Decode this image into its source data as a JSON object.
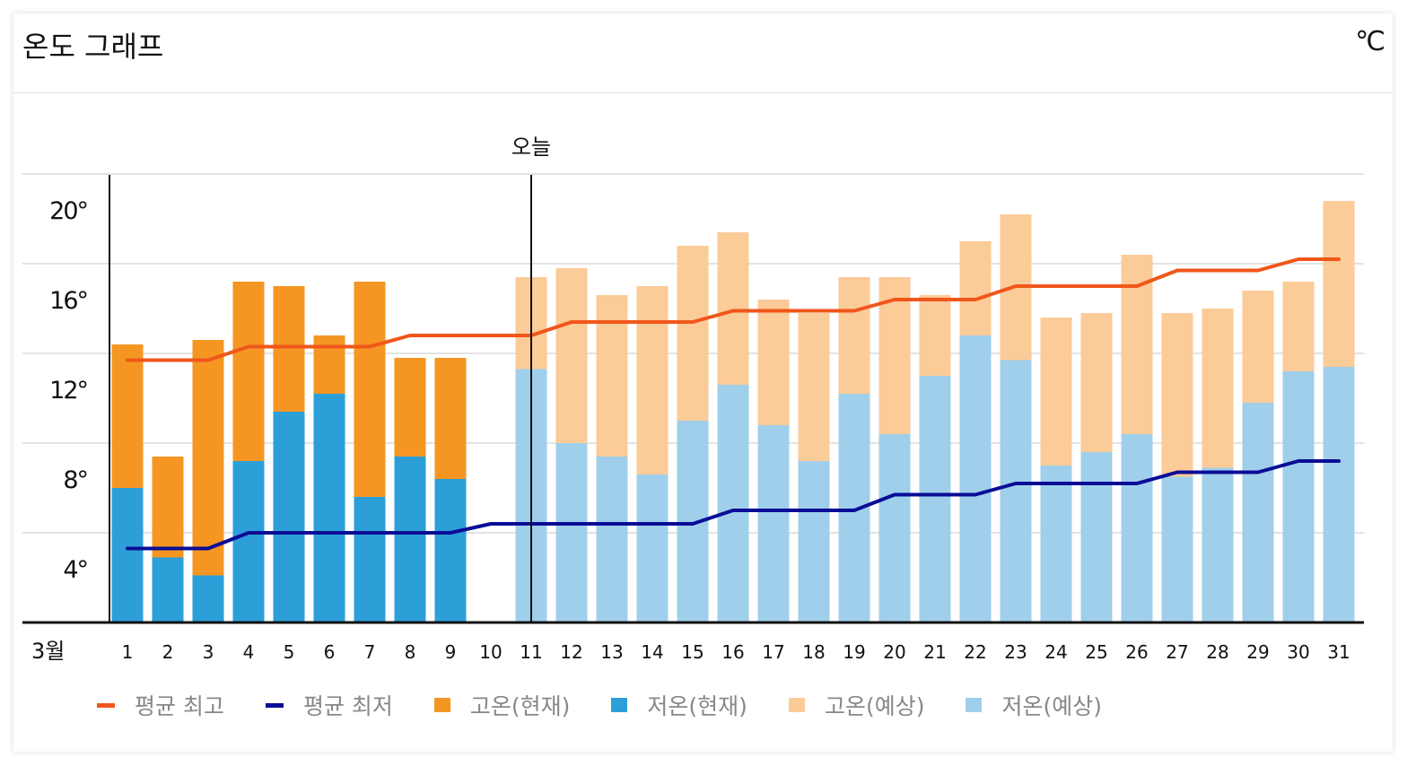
{
  "header": {
    "title": "온도 그래프",
    "unit": "℃"
  },
  "chart_data": {
    "type": "bar",
    "month_label": "3월",
    "today_label": "오늘",
    "today": 11,
    "categories": [
      1,
      2,
      3,
      4,
      5,
      6,
      7,
      8,
      9,
      10,
      11,
      12,
      13,
      14,
      15,
      16,
      17,
      18,
      19,
      20,
      21,
      22,
      23,
      24,
      25,
      26,
      27,
      28,
      29,
      30,
      31
    ],
    "ylim": [
      0,
      20
    ],
    "yticks": [
      4,
      8,
      12,
      16,
      20
    ],
    "ytick_labels": [
      "4°",
      "8°",
      "12°",
      "16°",
      "20°"
    ],
    "grid": true,
    "legend_position": "bottom",
    "series": [
      {
        "name": "고온(현재)",
        "type": "bar",
        "color": "#f59623",
        "values": [
          12.4,
          7.4,
          12.6,
          15.2,
          15.0,
          12.8,
          15.2,
          11.8,
          11.8,
          null,
          null,
          null,
          null,
          null,
          null,
          null,
          null,
          null,
          null,
          null,
          null,
          null,
          null,
          null,
          null,
          null,
          null,
          null,
          null,
          null,
          null
        ]
      },
      {
        "name": "저온(현재)",
        "type": "bar",
        "color": "#2d9fd8",
        "values": [
          6.0,
          2.9,
          2.1,
          7.2,
          9.4,
          10.2,
          5.6,
          7.4,
          6.4,
          null,
          null,
          null,
          null,
          null,
          null,
          null,
          null,
          null,
          null,
          null,
          null,
          null,
          null,
          null,
          null,
          null,
          null,
          null,
          null,
          null,
          null
        ]
      },
      {
        "name": "고온(예상)",
        "type": "bar",
        "color": "#fbcb98",
        "values": [
          null,
          null,
          null,
          null,
          null,
          null,
          null,
          null,
          null,
          null,
          15.4,
          15.8,
          14.6,
          15.0,
          16.8,
          17.4,
          14.4,
          13.8,
          15.4,
          15.4,
          14.6,
          17.0,
          18.2,
          13.6,
          13.8,
          16.4,
          13.8,
          14.0,
          14.8,
          15.2,
          18.8
        ]
      },
      {
        "name": "저온(예상)",
        "type": "bar",
        "color": "#9fcfeb",
        "values": [
          null,
          null,
          null,
          null,
          null,
          null,
          null,
          null,
          null,
          null,
          11.3,
          8.0,
          7.4,
          6.6,
          9.0,
          10.6,
          8.8,
          7.2,
          10.2,
          8.4,
          11.0,
          12.8,
          11.7,
          7.0,
          7.6,
          8.4,
          6.5,
          6.9,
          9.8,
          11.2,
          11.4
        ]
      },
      {
        "name": "평균 최고",
        "type": "line",
        "color": "#f0561a",
        "values": [
          11.7,
          11.7,
          11.7,
          12.3,
          12.3,
          12.3,
          12.3,
          12.8,
          12.8,
          12.8,
          12.8,
          13.4,
          13.4,
          13.4,
          13.4,
          13.9,
          13.9,
          13.9,
          13.9,
          14.4,
          14.4,
          14.4,
          15.0,
          15.0,
          15.0,
          15.0,
          15.7,
          15.7,
          15.7,
          16.2,
          16.2
        ]
      },
      {
        "name": "평균 최저",
        "type": "line",
        "color": "#0a0d96",
        "values": [
          3.3,
          3.3,
          3.3,
          4.0,
          4.0,
          4.0,
          4.0,
          4.0,
          4.0,
          4.4,
          4.4,
          4.4,
          4.4,
          4.4,
          4.4,
          5.0,
          5.0,
          5.0,
          5.0,
          5.7,
          5.7,
          5.7,
          6.2,
          6.2,
          6.2,
          6.2,
          6.7,
          6.7,
          6.7,
          7.2,
          7.2
        ]
      }
    ]
  },
  "legend": [
    {
      "label": "평균 최고",
      "color": "#f0561a",
      "kind": "line"
    },
    {
      "label": "평균 최저",
      "color": "#0a0d96",
      "kind": "line"
    },
    {
      "label": "고온(현재)",
      "color": "#f59623",
      "kind": "box"
    },
    {
      "label": "저온(현재)",
      "color": "#2d9fd8",
      "kind": "box"
    },
    {
      "label": "고온(예상)",
      "color": "#fbcb98",
      "kind": "box"
    },
    {
      "label": "저온(예상)",
      "color": "#9fcfeb",
      "kind": "box"
    }
  ]
}
